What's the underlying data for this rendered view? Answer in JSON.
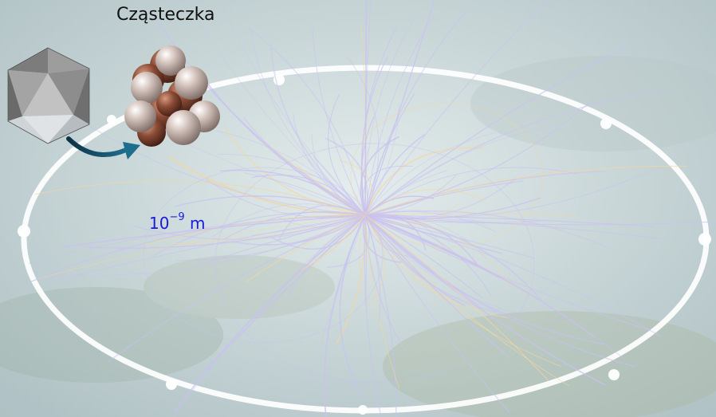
{
  "title": "Cząsteczka",
  "scale": {
    "base": "10",
    "exponent": "−9",
    "unit": "m"
  },
  "icons": {
    "crystal": "icosahedron-icon",
    "molecule": "molecule-icon",
    "arrow": "curved-arrow-icon"
  },
  "colors": {
    "label_text": "#111111",
    "scale_text": "#1a1adc",
    "ring": "#ffffff",
    "tracks_primary": "#c9c2f0",
    "tracks_secondary": "#f2d7a0"
  }
}
